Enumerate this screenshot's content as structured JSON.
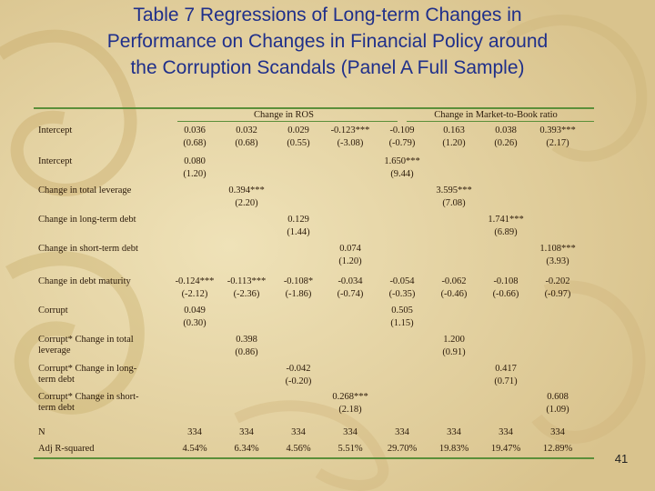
{
  "slide": {
    "title_lines": [
      "Table 7 Regressions of Long-term Changes in",
      "Performance on Changes in Financial Policy around",
      "the Corruption Scandals (Panel A Full Sample)"
    ],
    "page_number": "41"
  },
  "table": {
    "groups": [
      "Change in ROS",
      "Change in Market-to-Book ratio"
    ],
    "rows": [
      {
        "label": "Intercept",
        "label2": "",
        "values": [
          "0.036",
          "0.032",
          "0.029",
          "-0.123***",
          "-0.109",
          "0.163",
          "0.038",
          "0.393***"
        ],
        "sub": [
          "(0.68)",
          "(0.68)",
          "(0.55)",
          "(-3.08)",
          "(-0.79)",
          "(1.20)",
          "(0.26)",
          "(2.17)"
        ]
      },
      {
        "label": "Intercept",
        "label2": "",
        "values": [
          "0.080",
          "",
          "",
          "",
          "1.650***",
          "",
          "",
          ""
        ],
        "sub": [
          "(1.20)",
          "",
          "",
          "",
          "(9.44)",
          "",
          "",
          ""
        ]
      },
      {
        "label": "Change in total leverage",
        "label2": "",
        "values": [
          "",
          "0.394***",
          "",
          "",
          "",
          "3.595***",
          "",
          ""
        ],
        "sub": [
          "",
          "(2.20)",
          "",
          "",
          "",
          "(7.08)",
          "",
          ""
        ]
      },
      {
        "label": "Change in long-term debt",
        "label2": "",
        "values": [
          "",
          "",
          "0.129",
          "",
          "",
          "",
          "1.741***",
          ""
        ],
        "sub": [
          "",
          "",
          "(1.44)",
          "",
          "",
          "",
          "(6.89)",
          ""
        ]
      },
      {
        "label": "Change in short-term debt",
        "label2": "",
        "values": [
          "",
          "",
          "",
          "0.074",
          "",
          "",
          "",
          "1.108***"
        ],
        "sub": [
          "",
          "",
          "",
          "(1.20)",
          "",
          "",
          "",
          "(3.93)"
        ]
      },
      {
        "label": "Change in debt maturity",
        "label2": "",
        "values": [
          "-0.124***",
          "-0.113***",
          "-0.108*",
          "-0.034",
          "-0.054",
          "-0.062",
          "-0.108",
          "-0.202"
        ],
        "sub": [
          "(-2.12)",
          "(-2.36)",
          "(-1.86)",
          "(-0.74)",
          "(-0.35)",
          "(-0.46)",
          "(-0.66)",
          "(-0.97)"
        ]
      },
      {
        "label": "Corrupt",
        "label2": "",
        "values": [
          "0.049",
          "",
          "",
          "",
          "0.505",
          "",
          "",
          ""
        ],
        "sub": [
          "(0.30)",
          "",
          "",
          "",
          "(1.15)",
          "",
          "",
          ""
        ]
      },
      {
        "label": "Corrupt* Change in total",
        "label2": "leverage",
        "values": [
          "",
          "0.398",
          "",
          "",
          "",
          "1.200",
          "",
          ""
        ],
        "sub": [
          "",
          "(0.86)",
          "",
          "",
          "",
          "(0.91)",
          "",
          ""
        ]
      },
      {
        "label": "Corrupt* Change in long-",
        "label2": "term debt",
        "values": [
          "",
          "",
          "-0.042",
          "",
          "",
          "",
          "0.417",
          ""
        ],
        "sub": [
          "",
          "",
          "(-0.20)",
          "",
          "",
          "",
          "(0.71)",
          ""
        ]
      },
      {
        "label": "Corrupt* Change in short-",
        "label2": "term debt",
        "values": [
          "",
          "",
          "",
          "0.268***",
          "",
          "",
          "",
          "0.608"
        ],
        "sub": [
          "",
          "",
          "",
          "(2.18)",
          "",
          "",
          "",
          "(1.09)"
        ]
      }
    ],
    "n_label": "N",
    "n_values": [
      "334",
      "334",
      "334",
      "334",
      "334",
      "334",
      "334",
      "334"
    ],
    "r2_label": "Adj R-squared",
    "r2_values": [
      "4.54%",
      "6.34%",
      "4.56%",
      "5.51%",
      "29.70%",
      "19.83%",
      "19.47%",
      "12.89%"
    ]
  },
  "colors": {
    "title": "#1f2f8a",
    "rule": "#5b8f3a",
    "background": "#e8d7a8",
    "text": "#2b1a0a"
  }
}
